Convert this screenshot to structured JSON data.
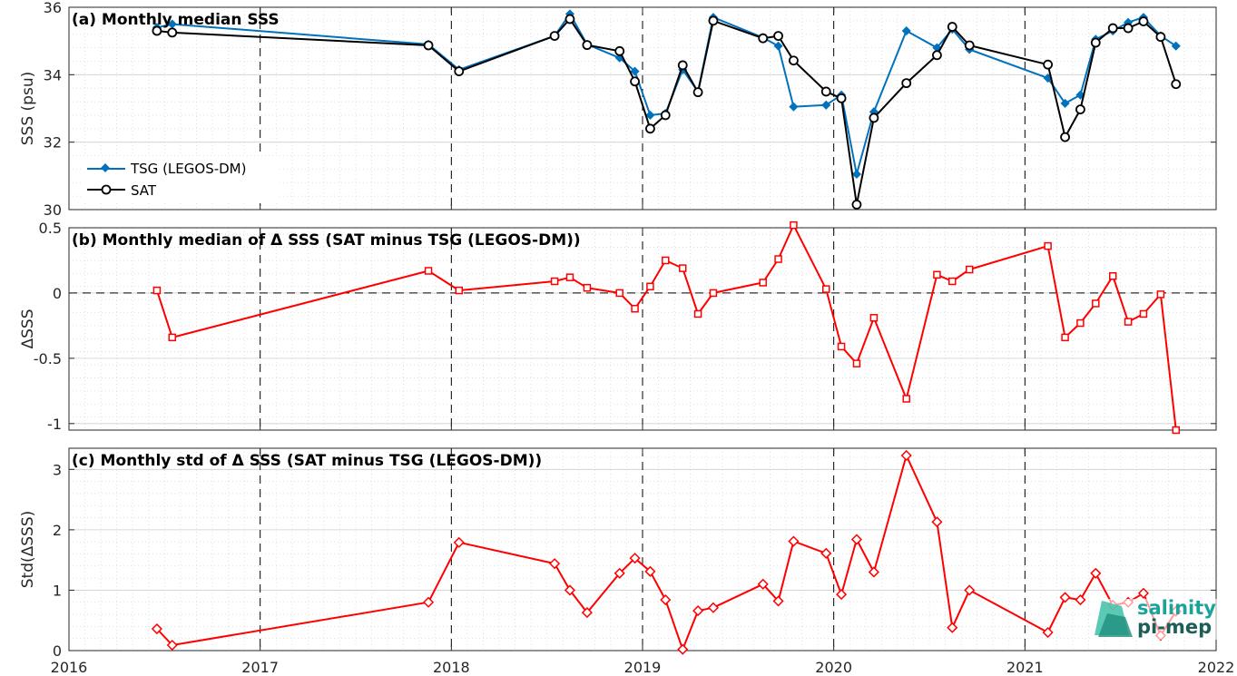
{
  "x_ticks": [
    {
      "value": 2016,
      "label": "2016"
    },
    {
      "value": 2017,
      "label": "2017"
    },
    {
      "value": 2018,
      "label": "2018"
    },
    {
      "value": 2019,
      "label": "2019"
    },
    {
      "value": 2020,
      "label": "2020"
    },
    {
      "value": 2021,
      "label": "2021"
    },
    {
      "value": 2022,
      "label": "2022"
    }
  ],
  "legend": {
    "tsg": "TSG (LEGOS-DM)",
    "sat": "SAT"
  },
  "logo": {
    "line1": "salinity",
    "line2": "pi-mep"
  },
  "colors": {
    "tsg": "#0072BD",
    "sat": "#000000",
    "delta": "#FF0000",
    "logo1": "#1aa39a",
    "logo2": "#1e5e57"
  },
  "chart_data": [
    {
      "type": "line",
      "title": "(a) Monthly median SSS",
      "ylabel": "SSS (psu)",
      "xlim": [
        2016,
        2022
      ],
      "ylim": [
        30,
        36
      ],
      "yticks": [
        30,
        32,
        34,
        36
      ],
      "grid": true,
      "legend_position": "lower-left",
      "series": [
        {
          "name": "TSG (LEGOS-DM)",
          "marker": "diamond",
          "color": "#0072BD",
          "x": [
            2016.46,
            2016.54,
            2017.88,
            2018.04,
            2018.54,
            2018.62,
            2018.71,
            2018.88,
            2018.96,
            2019.04,
            2019.12,
            2019.21,
            2019.29,
            2019.37,
            2019.63,
            2019.71,
            2019.79,
            2019.96,
            2020.04,
            2020.12,
            2020.21,
            2020.38,
            2020.54,
            2020.62,
            2020.71,
            2021.12,
            2021.21,
            2021.29,
            2021.37,
            2021.46,
            2021.54,
            2021.62,
            2021.71,
            2021.79
          ],
          "y": [
            35.4,
            35.5,
            34.9,
            34.15,
            35.15,
            35.8,
            34.9,
            34.5,
            34.1,
            32.8,
            32.85,
            34.15,
            33.5,
            35.7,
            35.1,
            34.85,
            33.05,
            33.1,
            33.4,
            31.05,
            32.9,
            35.3,
            34.8,
            35.35,
            34.75,
            33.9,
            33.15,
            33.4,
            35.05,
            35.3,
            35.55,
            35.7,
            35.15,
            34.85
          ]
        },
        {
          "name": "SAT",
          "marker": "circle",
          "color": "#000000",
          "x": [
            2016.46,
            2016.54,
            2017.88,
            2018.04,
            2018.54,
            2018.62,
            2018.71,
            2018.88,
            2018.96,
            2019.04,
            2019.12,
            2019.21,
            2019.29,
            2019.37,
            2019.63,
            2019.71,
            2019.79,
            2019.96,
            2020.04,
            2020.12,
            2020.21,
            2020.38,
            2020.54,
            2020.62,
            2020.71,
            2021.12,
            2021.21,
            2021.29,
            2021.37,
            2021.46,
            2021.54,
            2021.62,
            2021.71,
            2021.79
          ],
          "y": [
            35.3,
            35.25,
            34.87,
            34.1,
            35.15,
            35.65,
            34.88,
            34.7,
            33.8,
            32.4,
            32.8,
            34.28,
            33.48,
            35.6,
            35.08,
            35.15,
            34.42,
            33.5,
            33.3,
            30.15,
            32.72,
            33.75,
            34.58,
            35.42,
            34.87,
            34.3,
            32.15,
            32.97,
            34.95,
            35.38,
            35.38,
            35.58,
            35.12,
            33.72
          ]
        }
      ]
    },
    {
      "type": "line",
      "title": "(b) Monthly median of Δ SSS (SAT minus TSG (LEGOS-DM))",
      "ylabel": "ΔSSS",
      "xlim": [
        2016,
        2022
      ],
      "ylim": [
        -1.05,
        0.5
      ],
      "yticks": [
        -1,
        -0.5,
        0,
        0.5
      ],
      "ytick_labels": [
        "-1",
        "-0.5",
        "0",
        "0.5"
      ],
      "zero_line": true,
      "grid": true,
      "series": [
        {
          "marker": "square",
          "color": "#FF0000",
          "x": [
            2016.46,
            2016.54,
            2017.88,
            2018.04,
            2018.54,
            2018.62,
            2018.71,
            2018.88,
            2018.96,
            2019.04,
            2019.12,
            2019.21,
            2019.29,
            2019.37,
            2019.63,
            2019.71,
            2019.79,
            2019.96,
            2020.04,
            2020.12,
            2020.21,
            2020.38,
            2020.54,
            2020.62,
            2020.71,
            2021.12,
            2021.21,
            2021.29,
            2021.37,
            2021.46,
            2021.54,
            2021.62,
            2021.71,
            2021.79
          ],
          "y": [
            0.02,
            -0.34,
            0.17,
            0.02,
            0.09,
            0.12,
            0.04,
            0.0,
            -0.12,
            0.05,
            0.25,
            0.19,
            -0.16,
            0.0,
            0.08,
            0.26,
            0.52,
            0.03,
            -0.41,
            -0.54,
            -0.19,
            -0.81,
            0.14,
            0.09,
            0.18,
            0.36,
            -0.34,
            -0.23,
            -0.08,
            0.13,
            -0.22,
            -0.16,
            -0.01,
            -1.05
          ]
        }
      ]
    },
    {
      "type": "line",
      "title": "(c) Monthly std of Δ SSS (SAT minus TSG (LEGOS-DM))",
      "ylabel": "Std(ΔSSS)",
      "xlim": [
        2016,
        2022
      ],
      "ylim": [
        0,
        3.35
      ],
      "yticks": [
        0,
        1,
        2,
        3
      ],
      "grid": true,
      "series": [
        {
          "marker": "diamond",
          "color": "#FF0000",
          "x": [
            2016.46,
            2016.54,
            2017.88,
            2018.04,
            2018.54,
            2018.62,
            2018.71,
            2018.88,
            2018.96,
            2019.04,
            2019.12,
            2019.21,
            2019.29,
            2019.37,
            2019.63,
            2019.71,
            2019.79,
            2019.96,
            2020.04,
            2020.12,
            2020.21,
            2020.38,
            2020.54,
            2020.62,
            2020.71,
            2021.12,
            2021.21,
            2021.29,
            2021.37,
            2021.46,
            2021.54,
            2021.62,
            2021.71,
            2021.79
          ],
          "y": [
            0.36,
            0.09,
            0.8,
            1.79,
            1.44,
            1.0,
            0.63,
            1.28,
            1.53,
            1.31,
            0.84,
            0.02,
            0.66,
            0.71,
            1.1,
            0.82,
            1.81,
            1.61,
            0.93,
            1.84,
            1.3,
            3.23,
            2.13,
            0.38,
            1.0,
            0.3,
            0.88,
            0.84,
            1.28,
            0.75,
            0.8,
            0.95,
            0.25,
            0.65
          ]
        }
      ]
    }
  ]
}
